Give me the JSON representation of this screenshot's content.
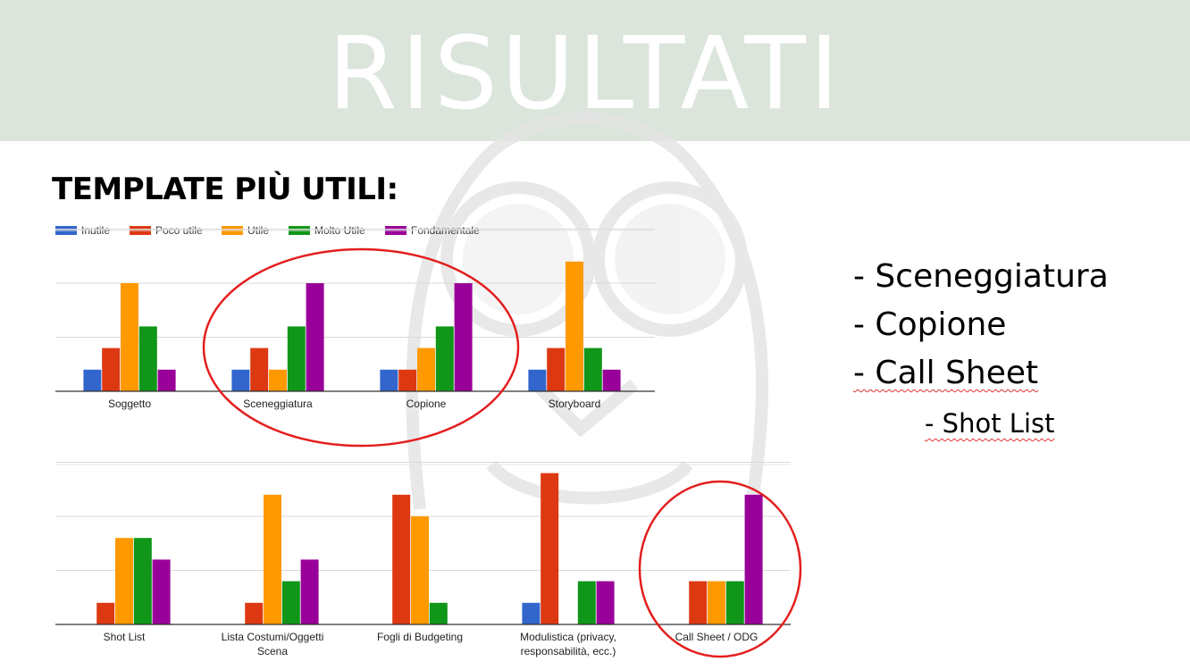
{
  "slide": {
    "title": "RISULTATI",
    "subtitle": "TEMPLATE PIÙ UTILI:"
  },
  "legend": [
    {
      "label": "Inutile",
      "color": "#3366cc"
    },
    {
      "label": "Poco utile",
      "color": "#dc3912"
    },
    {
      "label": "Utile",
      "color": "#ff9900"
    },
    {
      "label": "Molto Utile",
      "color": "#109618"
    },
    {
      "label": "Fondamentale",
      "color": "#990099"
    }
  ],
  "chart_data": [
    {
      "type": "bar",
      "categories": [
        "Soggetto",
        "Sceneggiatura",
        "Copione",
        "Storyboard"
      ],
      "series": [
        {
          "name": "Inutile",
          "values": [
            1,
            1,
            1,
            1
          ]
        },
        {
          "name": "Poco utile",
          "values": [
            2,
            2,
            1,
            2
          ]
        },
        {
          "name": "Utile",
          "values": [
            5,
            1,
            2,
            6
          ]
        },
        {
          "name": "Molto Utile",
          "values": [
            3,
            3,
            3,
            2
          ]
        },
        {
          "name": "Fondamentale",
          "values": [
            1,
            5,
            5,
            1
          ]
        }
      ],
      "highlighted": [
        "Sceneggiatura",
        "Copione"
      ],
      "ylim": [
        0,
        7.5
      ],
      "grid": true
    },
    {
      "type": "bar",
      "categories": [
        "Shot List",
        "Lista Costumi/Oggetti Scena",
        "Fogli di Budgeting",
        "Modulistica (privacy, responsabilità, ecc.)",
        "Call Sheet / ODG"
      ],
      "series": [
        {
          "name": "Inutile",
          "values": [
            0,
            0,
            0,
            1,
            0
          ]
        },
        {
          "name": "Poco utile",
          "values": [
            1,
            1,
            6,
            7,
            2
          ]
        },
        {
          "name": "Utile",
          "values": [
            4,
            6,
            5,
            0,
            2
          ]
        },
        {
          "name": "Molto Utile",
          "values": [
            4,
            2,
            1,
            2,
            2
          ]
        },
        {
          "name": "Fondamentale",
          "values": [
            3,
            3,
            0,
            2,
            6
          ]
        }
      ],
      "highlighted": [
        "Call Sheet / ODG"
      ],
      "ylim": [
        0,
        7.5
      ],
      "grid": true
    }
  ],
  "bullets": [
    "- Sceneggiatura",
    "- Copione",
    "- Call Sheet",
    "- Shot List"
  ]
}
